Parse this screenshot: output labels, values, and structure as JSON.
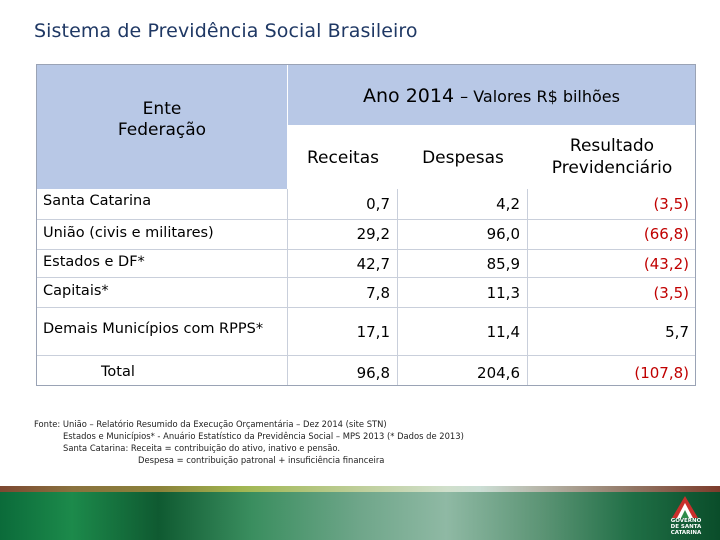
{
  "title": "Sistema de Previdência Social Brasileiro",
  "table": {
    "header_left": [
      "Ente",
      "Federação"
    ],
    "header_top_main": "Ano 2014",
    "header_top_sub": "– Valores R$ bilhões",
    "columns": [
      "Receitas",
      "Despesas",
      "Resultado",
      "Previdenciário"
    ],
    "rows": [
      {
        "label": "Santa Catarina",
        "receitas": "0,7",
        "despesas": "4,2",
        "resultado": "(3,5)"
      },
      {
        "label": "União (civis e militares)",
        "receitas": "29,2",
        "despesas": "96,0",
        "resultado": "(66,8)"
      },
      {
        "label": "Estados e DF*",
        "receitas": "42,7",
        "despesas": "85,9",
        "resultado": "(43,2)"
      },
      {
        "label": "Capitais*",
        "receitas": "7,8",
        "despesas": "11,3",
        "resultado": "(3,5)"
      },
      {
        "label": "Demais Municípios com RPPS*",
        "receitas": "17,1",
        "despesas": "11,4",
        "resultado": "5,7"
      },
      {
        "label": "Total",
        "receitas": "96,8",
        "despesas": "204,6",
        "resultado": "(107,8)"
      }
    ]
  },
  "footnote": [
    "Fonte: União – Relatório Resumido da Execução Orçamentária – Dez 2014 (site STN)",
    "Estados e Municípios* - Anuário Estatístico da Previdência Social – MPS 2013 (* Dados de 2013)",
    "Santa Catarina: Receita = contribuição do ativo, inativo e pensão.",
    "Despesa = contribuição patronal + insuficiência financeira"
  ],
  "logo": {
    "text": [
      "GOVERNO",
      "DE SANTA",
      "CATARINA"
    ],
    "icon": "state-flag-logo-icon"
  },
  "colors": {
    "header_bg": "#b8c8e6",
    "title": "#1f3864",
    "negative": "#c00000"
  }
}
